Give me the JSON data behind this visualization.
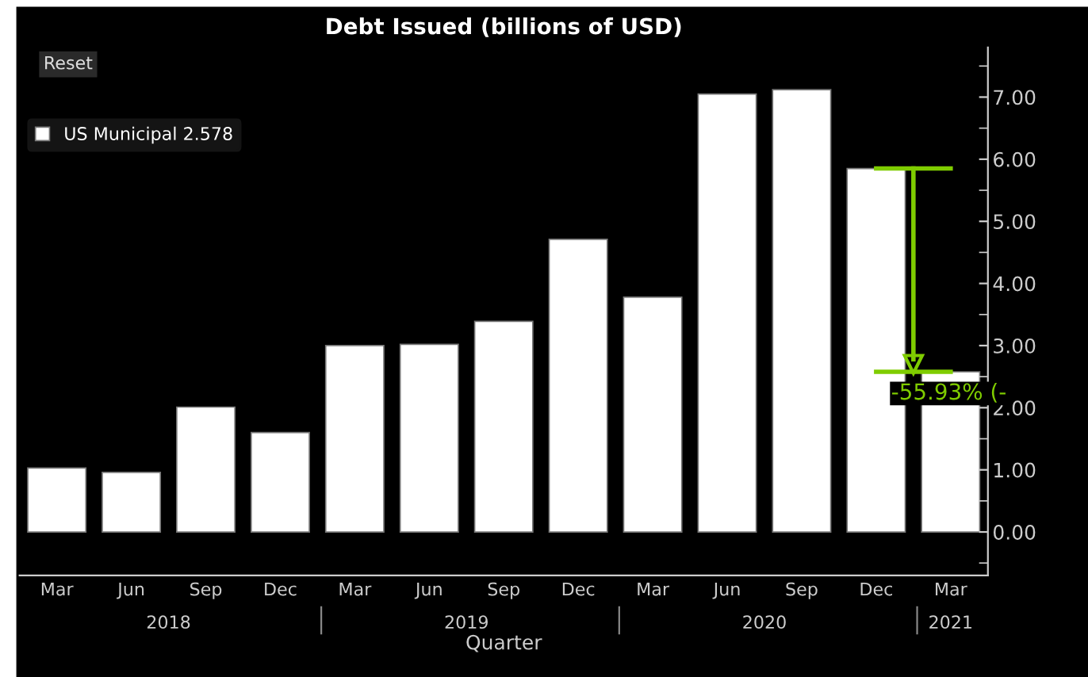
{
  "chart_data": {
    "type": "bar",
    "title": "Debt Issued (billions of USD)",
    "xlabel": "Quarter",
    "categories": [
      "Mar",
      "Jun",
      "Sep",
      "Dec",
      "Mar",
      "Jun",
      "Sep",
      "Dec",
      "Mar",
      "Jun",
      "Sep",
      "Dec",
      "Mar"
    ],
    "series": [
      {
        "name": "US Municipal 2.578",
        "color": "#ffffff",
        "values": [
          1.03,
          0.96,
          2.01,
          1.6,
          3.0,
          3.02,
          3.39,
          4.71,
          3.78,
          7.05,
          7.12,
          5.85,
          2.578
        ]
      }
    ],
    "ylim": [
      -0.7,
      7.8
    ],
    "yticks": [
      {
        "value": 0,
        "label": "0.00"
      },
      {
        "value": 1,
        "label": "1.00"
      },
      {
        "value": 2,
        "label": "2.00"
      },
      {
        "value": 3,
        "label": "3.00"
      },
      {
        "value": 4,
        "label": "4.00"
      },
      {
        "value": 5,
        "label": "5.00"
      },
      {
        "value": 6,
        "label": "6.00"
      },
      {
        "value": 7,
        "label": "7.00"
      }
    ],
    "annotations": [
      "-55.93% (-",
      "2018",
      "2019",
      "2020",
      "2021",
      "Reset"
    ],
    "legend": "top left",
    "grid": false
  }
}
